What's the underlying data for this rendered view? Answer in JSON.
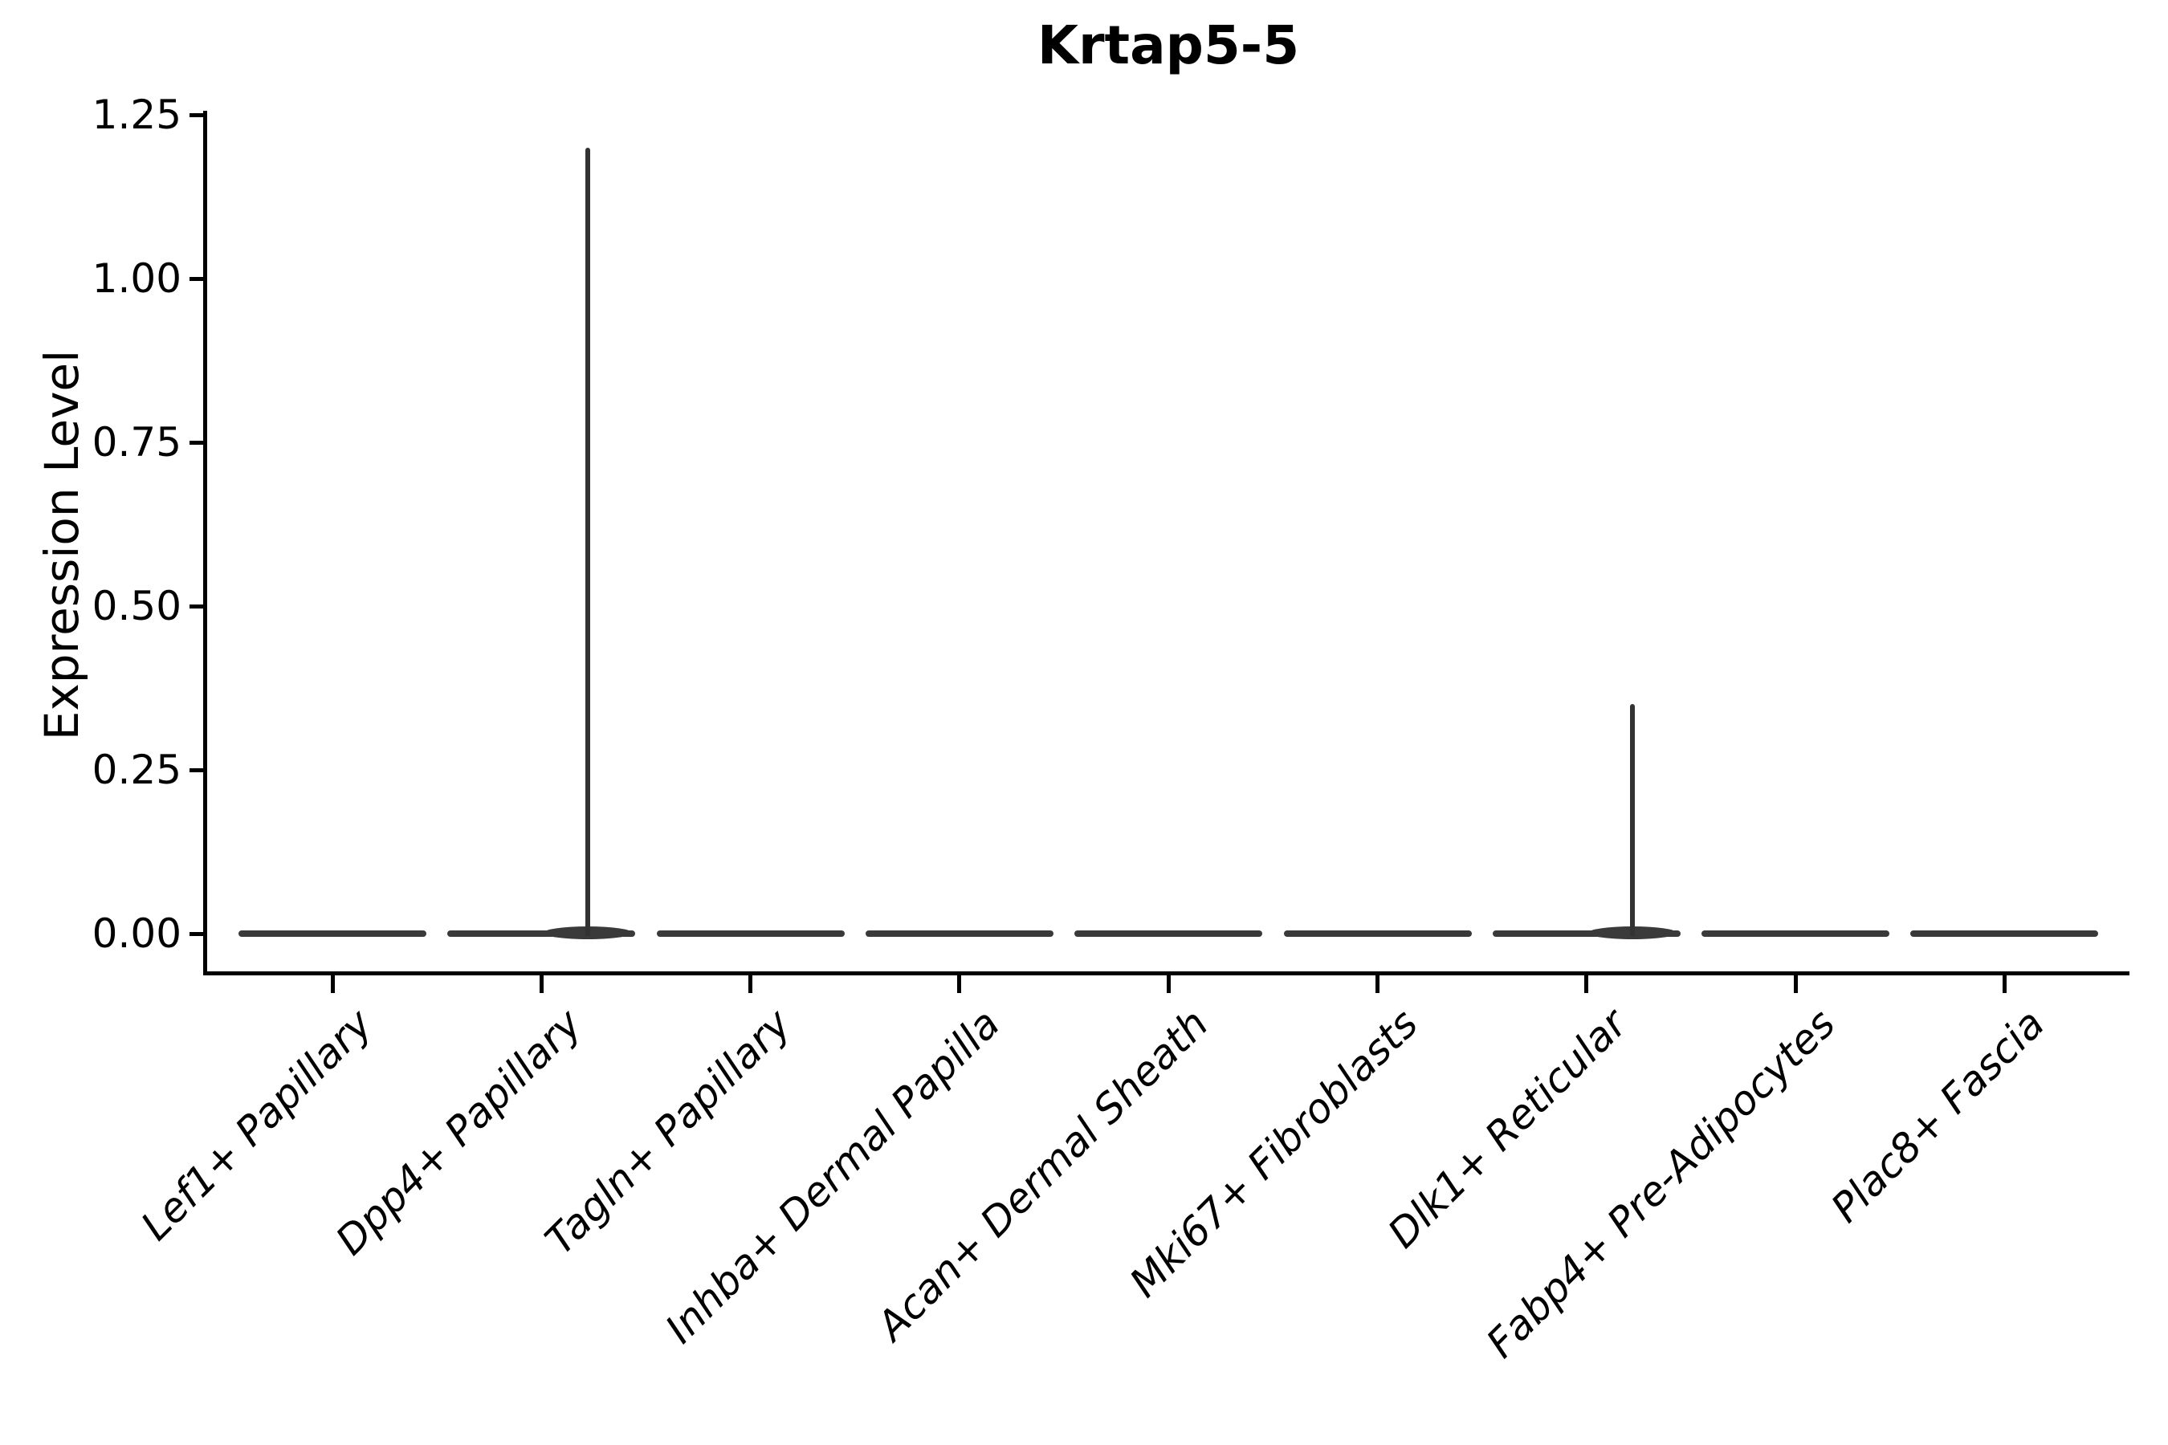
{
  "figure": {
    "title": "Krtap5-5"
  },
  "colors": {
    "violin_fill": "#3a3a3a",
    "spike": "#333333",
    "axis": "#000000",
    "text": "#000000",
    "background": "#ffffff"
  },
  "chart_data": {
    "type": "violin",
    "title": "Krtap5-5",
    "xlabel": "",
    "ylabel": "Expression Level",
    "categories": [
      "Lef1+ Papillary",
      "Dpp4+ Papillary",
      "Tagln+ Papillary",
      "Inhba+ Dermal Papilla",
      "Acan+ Dermal Sheath",
      "Mki67+ Fibroblasts",
      "Dlk1+ Reticular",
      "Fabp4+ Pre-Adipocytes",
      "Plac8+ Fascia"
    ],
    "violins": [
      {
        "category": "Lef1+ Papillary",
        "bulk_at": 0.0,
        "min": 0.0,
        "max": 0.0
      },
      {
        "category": "Dpp4+ Papillary",
        "bulk_at": 0.0,
        "min": 0.0,
        "max": 1.2
      },
      {
        "category": "Tagln+ Papillary",
        "bulk_at": 0.0,
        "min": 0.0,
        "max": 0.0
      },
      {
        "category": "Inhba+ Dermal Papilla",
        "bulk_at": 0.0,
        "min": 0.0,
        "max": 0.0
      },
      {
        "category": "Acan+ Dermal Sheath",
        "bulk_at": 0.0,
        "min": 0.0,
        "max": 0.0
      },
      {
        "category": "Mki67+ Fibroblasts",
        "bulk_at": 0.0,
        "min": 0.0,
        "max": 0.0
      },
      {
        "category": "Dlk1+ Reticular",
        "bulk_at": 0.0,
        "min": 0.0,
        "max": 0.35
      },
      {
        "category": "Fabp4+ Pre-Adipocytes",
        "bulk_at": 0.0,
        "min": 0.0,
        "max": 0.0
      },
      {
        "category": "Plac8+ Fascia",
        "bulk_at": 0.0,
        "min": 0.0,
        "max": 0.0
      }
    ],
    "yticks": [
      0.0,
      0.25,
      0.5,
      0.75,
      1.0,
      1.25
    ],
    "ytick_labels": [
      "0.00",
      "0.25",
      "0.50",
      "0.75",
      "1.00",
      "1.25"
    ],
    "ylim": [
      -0.06,
      1.26
    ],
    "grid": false,
    "legend": "none",
    "layout_hints": {
      "x_label_rotation_deg": 45,
      "violin_width_fraction": 0.9,
      "spike_x_offset_fraction": 0.22
    }
  }
}
